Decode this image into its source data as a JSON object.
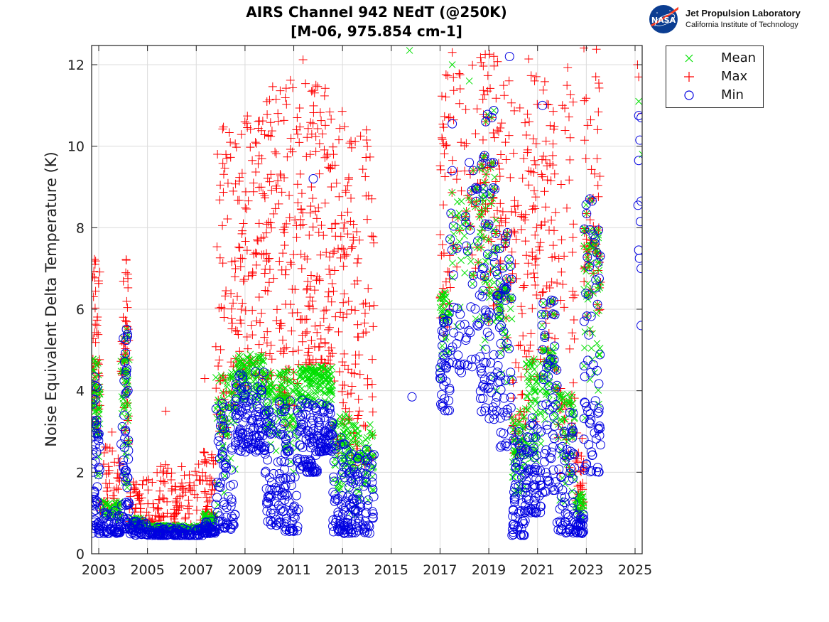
{
  "header": {
    "title_line1": "AIRS Channel 942 NEdT (@250K)",
    "title_line2": "[M-06, 975.854 cm-1]"
  },
  "logo": {
    "org": "Jet Propulsion Laboratory",
    "sub": "California Institute of Technology",
    "seal_text": "NASA"
  },
  "colors": {
    "mean": "#00e000",
    "max": "#ff0000",
    "min": "#0000e0",
    "grid": "#dcdcdc",
    "axis": "#222222"
  },
  "chart_data": {
    "type": "scatter",
    "title": "AIRS Channel 942 NEdT (@250K) [M-06, 975.854 cm-1]",
    "xlabel": "",
    "ylabel": "Noise Equivalent Delta Temperature (K)",
    "xlim": [
      2002.7,
      2025.3
    ],
    "ylim": [
      0,
      12.5
    ],
    "xticks": [
      2003,
      2005,
      2007,
      2009,
      2011,
      2013,
      2015,
      2017,
      2019,
      2021,
      2023,
      2025
    ],
    "xtick_labels": [
      "2003",
      "2005",
      "2007",
      "2009",
      "2011",
      "2013",
      "2015",
      "2017",
      "2019",
      "2021",
      "2023",
      "2025"
    ],
    "yticks": [
      0,
      2,
      4,
      6,
      8,
      10,
      12
    ],
    "ytick_labels": [
      "0",
      "2",
      "4",
      "6",
      "8",
      "10",
      "12"
    ],
    "grid": true,
    "legend": {
      "placement": "outside-top-right",
      "entries": [
        {
          "name": "Mean",
          "marker": "x",
          "color": "#00e000"
        },
        {
          "name": "Max",
          "marker": "+",
          "color": "#ff0000"
        },
        {
          "name": "Min",
          "marker": "o",
          "color": "#0000e0"
        }
      ]
    },
    "series_envelopes_note": "Dense daily scatter summarized per time segment: [x_start, x_end, min_low, min_high, mean_low, mean_high, max_low, max_high, density]",
    "segments": [
      [
        2002.72,
        2003.05,
        0.5,
        4.6,
        0.8,
        4.8,
        1.0,
        7.5,
        60
      ],
      [
        2003.05,
        2003.9,
        0.5,
        1.1,
        0.6,
        1.3,
        0.8,
        3.0,
        45
      ],
      [
        2003.9,
        2004.25,
        0.6,
        5.7,
        0.8,
        4.8,
        1.0,
        7.3,
        55
      ],
      [
        2004.25,
        2005.0,
        0.45,
        0.8,
        0.5,
        0.9,
        0.6,
        1.8,
        40
      ],
      [
        2005.0,
        2007.3,
        0.45,
        0.65,
        0.5,
        0.7,
        0.55,
        2.2,
        120
      ],
      [
        2007.3,
        2007.8,
        0.5,
        0.8,
        0.55,
        1.0,
        0.6,
        2.5,
        40
      ],
      [
        2007.8,
        2008.6,
        0.6,
        3.7,
        1.0,
        4.5,
        1.5,
        10.5,
        70
      ],
      [
        2008.6,
        2009.8,
        2.5,
        4.5,
        3.5,
        4.9,
        4.0,
        10.9,
        110
      ],
      [
        2009.8,
        2010.6,
        0.7,
        3.8,
        2.5,
        4.5,
        3.5,
        11.5,
        80
      ],
      [
        2010.6,
        2011.2,
        0.55,
        3.8,
        2.0,
        4.6,
        3.0,
        11.8,
        60
      ],
      [
        2011.2,
        2012.0,
        2.0,
        3.8,
        3.5,
        4.6,
        4.5,
        12.3,
        80
      ],
      [
        2012.0,
        2012.6,
        2.5,
        3.7,
        3.5,
        4.6,
        4.5,
        11.6,
        60
      ],
      [
        2012.6,
        2013.3,
        0.5,
        2.9,
        1.0,
        3.5,
        2.0,
        11.0,
        70
      ],
      [
        2013.3,
        2014.3,
        0.5,
        2.6,
        0.9,
        3.2,
        1.5,
        10.6,
        80
      ],
      [
        2017.0,
        2017.4,
        3.5,
        5.9,
        4.0,
        6.5,
        5.0,
        12.3,
        40
      ],
      [
        2017.4,
        2018.6,
        4.4,
        9.6,
        5.0,
        9.0,
        6.0,
        12.0,
        50
      ],
      [
        2018.6,
        2019.3,
        3.3,
        11.1,
        4.0,
        9.5,
        5.0,
        12.3,
        70
      ],
      [
        2019.3,
        2019.95,
        2.6,
        8.0,
        3.5,
        6.5,
        4.5,
        12.2,
        60
      ],
      [
        2019.95,
        2020.5,
        0.45,
        3.0,
        1.0,
        3.5,
        1.5,
        11.0,
        60
      ],
      [
        2020.5,
        2021.15,
        1.0,
        3.6,
        2.0,
        4.8,
        3.0,
        12.2,
        60
      ],
      [
        2021.15,
        2021.8,
        1.5,
        6.5,
        3.0,
        5.0,
        4.0,
        12.0,
        60
      ],
      [
        2021.8,
        2022.55,
        0.5,
        3.5,
        1.0,
        4.0,
        1.5,
        12.0,
        60
      ],
      [
        2022.55,
        2022.9,
        0.5,
        1.0,
        0.6,
        1.5,
        0.8,
        3.0,
        30
      ],
      [
        2022.9,
        2023.6,
        2.0,
        9.0,
        3.0,
        8.0,
        4.0,
        12.5,
        70
      ]
    ],
    "outliers": {
      "mean": [
        [
          2015.75,
          12.35
        ],
        [
          2017.5,
          12.0
        ],
        [
          2018.2,
          11.6
        ],
        [
          2025.15,
          11.1
        ],
        [
          2025.3,
          9.8
        ]
      ],
      "max": [
        [
          2007.35,
          4.3
        ],
        [
          2005.75,
          3.5
        ],
        [
          2017.5,
          12.3
        ],
        [
          2025.1,
          12.0
        ],
        [
          2025.15,
          11.7
        ],
        [
          2025.3,
          10.8
        ]
      ],
      "min": [
        [
          2015.85,
          3.85
        ],
        [
          2019.85,
          12.2
        ],
        [
          2017.5,
          10.55
        ],
        [
          2018.2,
          9.6
        ],
        [
          2017.5,
          9.4
        ],
        [
          2021.2,
          11.0
        ],
        [
          2025.15,
          10.75
        ],
        [
          2025.25,
          10.7
        ],
        [
          2025.2,
          10.15
        ],
        [
          2025.15,
          9.65
        ],
        [
          2025.12,
          8.55
        ],
        [
          2025.25,
          8.65
        ],
        [
          2025.22,
          8.15
        ],
        [
          2025.15,
          7.45
        ],
        [
          2025.18,
          7.25
        ],
        [
          2025.25,
          7.0
        ],
        [
          2025.25,
          5.6
        ],
        [
          2011.8,
          9.2
        ]
      ]
    }
  }
}
